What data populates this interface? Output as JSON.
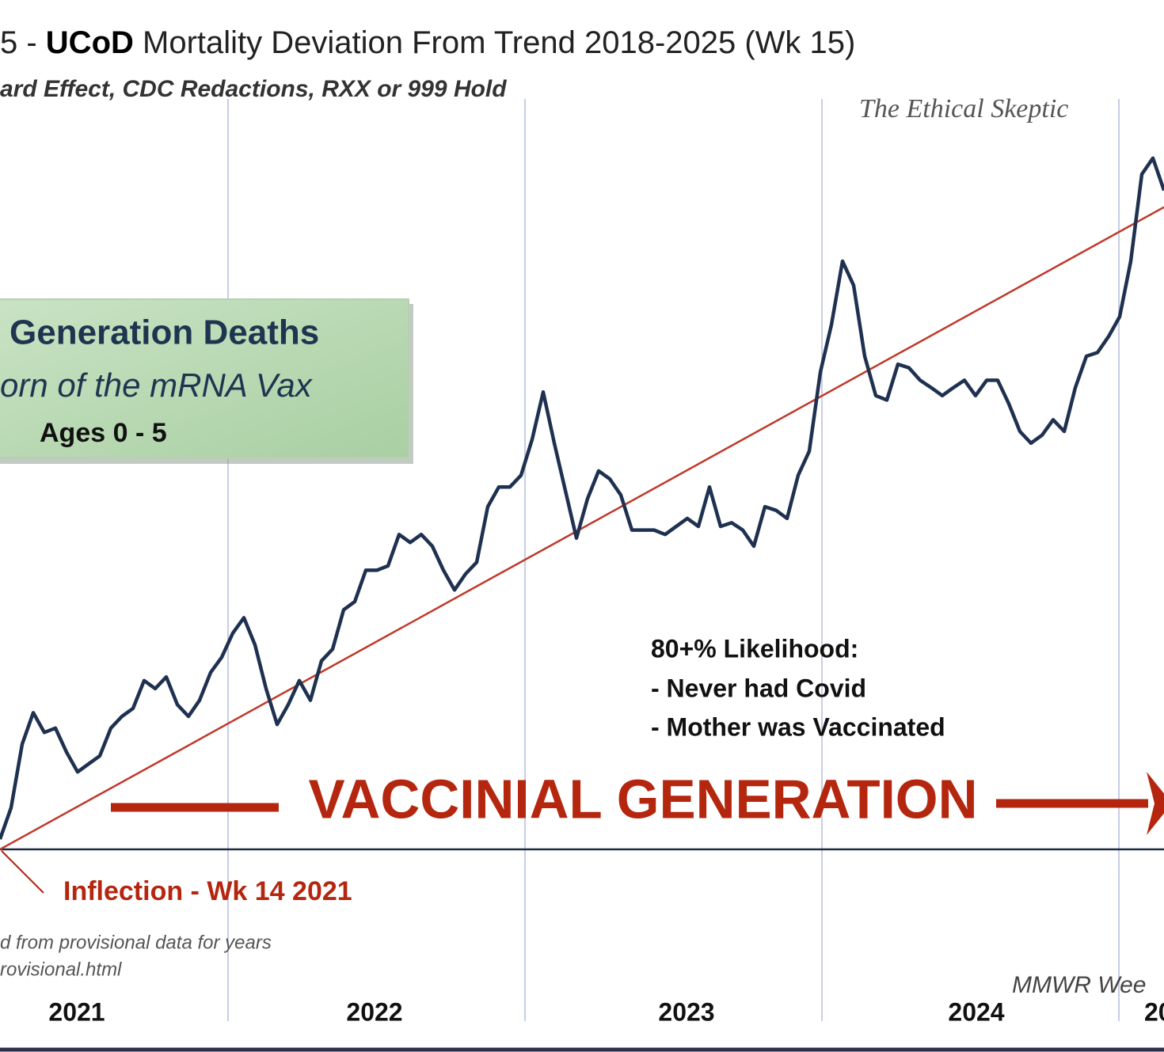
{
  "chart_data": {
    "type": "line",
    "title_parts": [
      "5 - ",
      "UCoD",
      " Mortality Deviation  From Trend  2018-2025 (Wk 15)"
    ],
    "subtitle": "ard Effect,  CDC Redactions, RXX or 999 Hold",
    "watermark": "The Ethical Skeptic",
    "box_lines": [
      "Generation  Deaths",
      "orn of the mRNA Vax",
      "Ages 0 - 5"
    ],
    "likelihood_lines": [
      "80+% Likelihood:",
      "- Never had Covid",
      "- Mother was Vaccinated"
    ],
    "banner": "VACCINIAL GENERATION",
    "inflection_label": "Inflection - Wk 14 2021",
    "source_lines": [
      "d from provisional data for years",
      "rovisional.html"
    ],
    "source_right": "MMWR Wee",
    "x_labels": [
      "2021",
      "2022",
      "2023",
      "2024",
      "20"
    ],
    "ylim": [
      0,
      100
    ],
    "color": "#1f3150",
    "trend_color": "#c0392b",
    "trend": [
      0,
      87.9
    ],
    "values": [
      1.4,
      5.7,
      14.4,
      18.7,
      16.0,
      16.6,
      13.3,
      10.6,
      11.7,
      12.8,
      16.6,
      18.2,
      19.3,
      23.1,
      22.0,
      23.6,
      19.8,
      18.2,
      20.4,
      24.2,
      26.3,
      29.6,
      31.7,
      28.0,
      22.0,
      17.1,
      19.8,
      23.1,
      20.4,
      25.8,
      27.4,
      32.8,
      33.9,
      38.2,
      38.2,
      38.8,
      43.1,
      42.0,
      43.1,
      41.5,
      38.2,
      35.5,
      37.7,
      39.3,
      46.9,
      49.6,
      49.6,
      51.2,
      56.1,
      62.6,
      55.6,
      49.1,
      42.6,
      48.0,
      51.8,
      50.7,
      48.5,
      43.7,
      43.7,
      43.7,
      43.1,
      44.2,
      45.3,
      44.2,
      49.6,
      44.2,
      44.7,
      43.7,
      41.5,
      46.9,
      46.4,
      45.3,
      51.2,
      54.5,
      65.3,
      71.8,
      80.5,
      77.2,
      67.5,
      62.1,
      61.5,
      66.4,
      65.9,
      64.2,
      63.2,
      62.1,
      63.2,
      64.2,
      62.1,
      64.2,
      64.2,
      61.0,
      57.2,
      55.6,
      56.7,
      58.8,
      57.2,
      63.2,
      67.5,
      68.0,
      70.2,
      72.9,
      80.5,
      92.4,
      94.6,
      90.2
    ]
  }
}
